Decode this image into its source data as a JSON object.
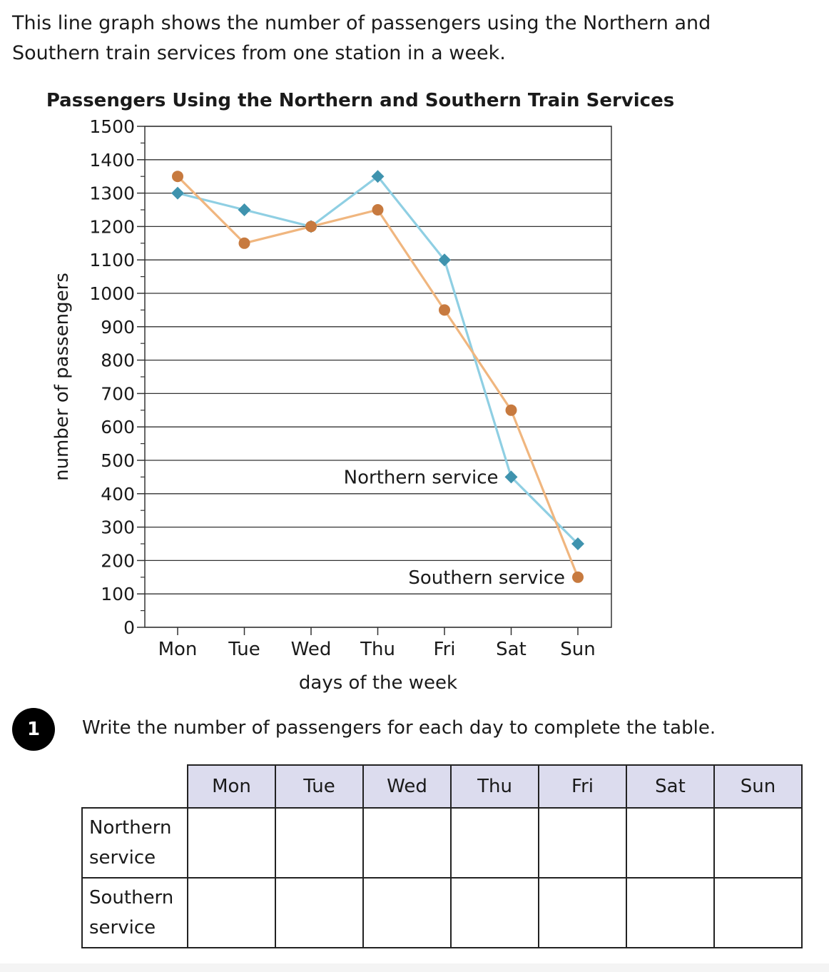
{
  "intro": {
    "line1": "This line graph shows the number of passengers using the Northern and",
    "line2": "Southern train services from one station in a week."
  },
  "chart_data": {
    "type": "line",
    "title": "Passengers Using the Northern and Southern Train Services",
    "xlabel": "days of the week",
    "ylabel": "number of passengers",
    "categories": [
      "Mon",
      "Tue",
      "Wed",
      "Thu",
      "Fri",
      "Sat",
      "Sun"
    ],
    "ylim": [
      0,
      1500
    ],
    "yticks": [
      0,
      100,
      200,
      300,
      400,
      500,
      600,
      700,
      800,
      900,
      1000,
      1100,
      1200,
      1300,
      1400,
      1500
    ],
    "grid": true,
    "series": [
      {
        "name": "Northern service",
        "values": [
          1300,
          1250,
          1200,
          1350,
          1100,
          450,
          250
        ],
        "color": "#8fcfe3",
        "marker": "diamond",
        "marker_color": "#3f93ae",
        "label_at_index": 5
      },
      {
        "name": "Southern service",
        "values": [
          1350,
          1150,
          1200,
          1250,
          950,
          650,
          150
        ],
        "color": "#f0b67f",
        "marker": "circle",
        "marker_color": "#c77a3f",
        "label_at_index": 6
      }
    ]
  },
  "question": {
    "number": "1",
    "text": "Write the number of passengers for each day to complete the table."
  },
  "table": {
    "days": [
      "Mon",
      "Tue",
      "Wed",
      "Thu",
      "Fri",
      "Sat",
      "Sun"
    ],
    "rows": [
      {
        "line1": "Northern",
        "line2": "service"
      },
      {
        "line1": "Southern",
        "line2": "service"
      }
    ]
  }
}
